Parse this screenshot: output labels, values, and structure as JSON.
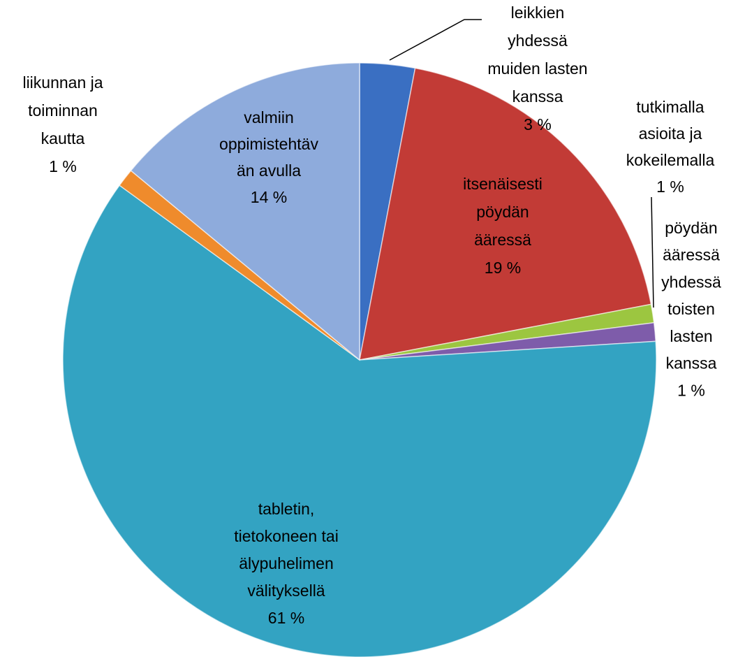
{
  "chart_data": {
    "type": "pie",
    "categories": [
      "leikkien\nyhdessä\nmuiden lasten\nkanssa",
      "itsenäisesti\npöydän\nääressä",
      "tutkimalla\nasioita ja\nkokeilemalla",
      "pöydän\nääressä\nyhdessä\ntoisten\nlasten\nkanssa",
      "tabletin,\ntietokoneen tai\nälypuhelimen\nvälityksellä",
      "liikunnan ja\ntoiminnan\nkautta",
      "valmiin\noppimistehtäv\nän avulla"
    ],
    "values": [
      3,
      19,
      1,
      1,
      61,
      1,
      14
    ],
    "value_labels": [
      "3 %",
      "19 %",
      "1 %",
      "1 %",
      "61 %",
      "1 %",
      "14 %"
    ],
    "colors": [
      "#3a6fc2",
      "#c23b36",
      "#9cc640",
      "#7e5caa",
      "#33a3c2",
      "#ef8b2c",
      "#8eabdc"
    ]
  }
}
